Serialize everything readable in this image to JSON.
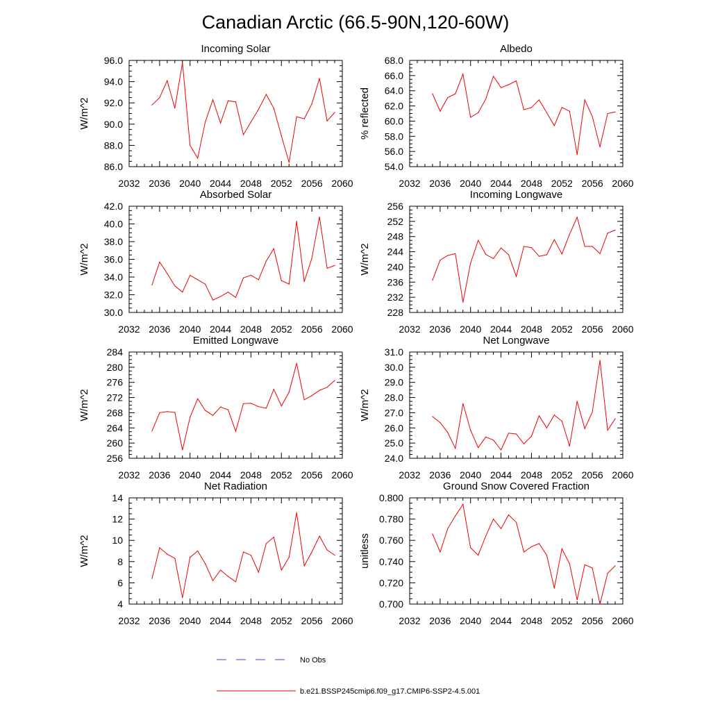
{
  "figure": {
    "title": "Canadian Arctic (66.5-90N,120-60W)",
    "legend": [
      {
        "label": "No Obs",
        "color": "#3344cc",
        "style": "dashed"
      },
      {
        "label": "b.e21.BSSP245cmip6.f09_g17.CMIP6-SSP2-4.5.001",
        "color": "#ee0000",
        "style": "solid"
      }
    ]
  },
  "chart_data": [
    {
      "type": "line",
      "title": "Incoming Solar",
      "ylabel": "W/m^2",
      "xlim": [
        2032,
        2060
      ],
      "xticks": [
        "2032",
        "2036",
        "2040",
        "2044",
        "2048",
        "2052",
        "2056",
        "2060"
      ],
      "ylim": [
        86.0,
        96.0
      ],
      "yticks": [
        "86.0",
        "88.0",
        "90.0",
        "92.0",
        "94.0",
        "96.0"
      ],
      "x": [
        2035,
        2036,
        2037,
        2038,
        2039,
        2040,
        2041,
        2042,
        2043,
        2044,
        2045,
        2046,
        2047,
        2048,
        2049,
        2050,
        2051,
        2052,
        2053,
        2054,
        2055,
        2056,
        2057,
        2058,
        2059
      ],
      "series": [
        {
          "name": "b.e21.BSSP245cmip6.f09_g17.CMIP6-SSP2-4.5.001",
          "color": "#ee0000",
          "values": [
            91.8,
            92.5,
            94.1,
            91.5,
            95.8,
            88.0,
            86.8,
            90.2,
            92.3,
            90.1,
            92.2,
            92.1,
            89.0,
            90.2,
            91.4,
            92.8,
            91.5,
            88.9,
            86.4,
            90.7,
            90.5,
            91.9,
            94.3,
            90.3,
            91.1
          ]
        }
      ]
    },
    {
      "type": "line",
      "title": "Albedo",
      "ylabel": "% reflected",
      "xlim": [
        2032,
        2060
      ],
      "xticks": [
        "2032",
        "2036",
        "2040",
        "2044",
        "2048",
        "2052",
        "2056",
        "2060"
      ],
      "ylim": [
        54.0,
        68.0
      ],
      "yticks": [
        "54.0",
        "56.0",
        "58.0",
        "60.0",
        "62.0",
        "64.0",
        "66.0",
        "68.0"
      ],
      "x": [
        2035,
        2036,
        2037,
        2038,
        2039,
        2040,
        2041,
        2042,
        2043,
        2044,
        2045,
        2046,
        2047,
        2048,
        2049,
        2050,
        2051,
        2052,
        2053,
        2054,
        2055,
        2056,
        2057,
        2058,
        2059
      ],
      "series": [
        {
          "name": "b.e21.BSSP245cmip6.f09_g17.CMIP6-SSP2-4.5.001",
          "color": "#ee0000",
          "values": [
            63.6,
            61.3,
            63.1,
            63.6,
            66.2,
            60.5,
            61.1,
            62.9,
            65.9,
            64.4,
            64.8,
            65.3,
            61.5,
            61.8,
            62.8,
            61.1,
            59.4,
            61.8,
            61.3,
            55.6,
            62.8,
            60.6,
            56.6,
            61.0,
            61.2
          ]
        }
      ]
    },
    {
      "type": "line",
      "title": "Absorbed Solar",
      "ylabel": "W/m^2",
      "xlim": [
        2032,
        2060
      ],
      "xticks": [
        "2032",
        "2036",
        "2040",
        "2044",
        "2048",
        "2052",
        "2056",
        "2060"
      ],
      "ylim": [
        30.0,
        42.0
      ],
      "yticks": [
        "30.0",
        "32.0",
        "34.0",
        "36.0",
        "38.0",
        "40.0",
        "42.0"
      ],
      "x": [
        2035,
        2036,
        2037,
        2038,
        2039,
        2040,
        2041,
        2042,
        2043,
        2044,
        2045,
        2046,
        2047,
        2048,
        2049,
        2050,
        2051,
        2052,
        2053,
        2054,
        2055,
        2056,
        2057,
        2058,
        2059
      ],
      "series": [
        {
          "name": "b.e21.BSSP245cmip6.f09_g17.CMIP6-SSP2-4.5.001",
          "color": "#ee0000",
          "values": [
            33.1,
            35.7,
            34.4,
            33.0,
            32.3,
            34.2,
            33.7,
            33.2,
            31.4,
            31.8,
            32.3,
            31.7,
            33.9,
            34.2,
            33.7,
            35.8,
            37.2,
            33.6,
            33.2,
            40.3,
            33.5,
            36.1,
            40.8,
            35.0,
            35.3
          ]
        }
      ]
    },
    {
      "type": "line",
      "title": "Incoming Longwave",
      "ylabel": "W/m^2",
      "xlim": [
        2032,
        2060
      ],
      "xticks": [
        "2032",
        "2036",
        "2040",
        "2044",
        "2048",
        "2052",
        "2056",
        "2060"
      ],
      "ylim": [
        228,
        256
      ],
      "yticks": [
        "228",
        "232",
        "236",
        "240",
        "244",
        "248",
        "252",
        "256"
      ],
      "x": [
        2035,
        2036,
        2037,
        2038,
        2039,
        2040,
        2041,
        2042,
        2043,
        2044,
        2045,
        2046,
        2047,
        2048,
        2049,
        2050,
        2051,
        2052,
        2053,
        2054,
        2055,
        2056,
        2057,
        2058,
        2059
      ],
      "series": [
        {
          "name": "b.e21.BSSP245cmip6.f09_g17.CMIP6-SSP2-4.5.001",
          "color": "#ee0000",
          "values": [
            236.5,
            241.8,
            243.0,
            243.5,
            230.7,
            241.0,
            247.0,
            243.3,
            242.2,
            245.0,
            243.2,
            237.5,
            245.4,
            245.1,
            242.8,
            243.2,
            247.2,
            243.4,
            248.6,
            253.1,
            245.4,
            245.4,
            243.5,
            248.9,
            249.7
          ]
        }
      ]
    },
    {
      "type": "line",
      "title": "Emitted Longwave",
      "ylabel": "W/m^2",
      "xlim": [
        2032,
        2060
      ],
      "xticks": [
        "2032",
        "2036",
        "2040",
        "2044",
        "2048",
        "2052",
        "2056",
        "2060"
      ],
      "ylim": [
        256,
        284
      ],
      "yticks": [
        "256",
        "260",
        "264",
        "268",
        "272",
        "276",
        "280",
        "284"
      ],
      "x": [
        2035,
        2036,
        2037,
        2038,
        2039,
        2040,
        2041,
        2042,
        2043,
        2044,
        2045,
        2046,
        2047,
        2048,
        2049,
        2050,
        2051,
        2052,
        2053,
        2054,
        2055,
        2056,
        2057,
        2058,
        2059
      ],
      "series": [
        {
          "name": "b.e21.BSSP245cmip6.f09_g17.CMIP6-SSP2-4.5.001",
          "color": "#ee0000",
          "values": [
            263.2,
            268.0,
            268.3,
            268.1,
            258.2,
            266.8,
            271.7,
            268.6,
            267.3,
            269.5,
            268.8,
            263.1,
            270.4,
            270.5,
            269.6,
            269.2,
            274.2,
            269.8,
            273.4,
            281.0,
            271.4,
            272.5,
            273.9,
            274.7,
            276.5
          ]
        }
      ]
    },
    {
      "type": "line",
      "title": "Net Longwave",
      "ylabel": "W/m^2",
      "xlim": [
        2032,
        2060
      ],
      "xticks": [
        "2032",
        "2036",
        "2040",
        "2044",
        "2048",
        "2052",
        "2056",
        "2060"
      ],
      "ylim": [
        24.0,
        31.0
      ],
      "yticks": [
        "24.0",
        "25.0",
        "26.0",
        "27.0",
        "28.0",
        "29.0",
        "30.0",
        "31.0"
      ],
      "x": [
        2035,
        2036,
        2037,
        2038,
        2039,
        2040,
        2041,
        2042,
        2043,
        2044,
        2045,
        2046,
        2047,
        2048,
        2049,
        2050,
        2051,
        2052,
        2053,
        2054,
        2055,
        2056,
        2057,
        2058,
        2059
      ],
      "series": [
        {
          "name": "b.e21.BSSP245cmip6.f09_g17.CMIP6-SSP2-4.5.001",
          "color": "#ee0000",
          "values": [
            26.75,
            26.35,
            25.7,
            24.65,
            27.6,
            25.85,
            24.7,
            25.4,
            25.2,
            24.55,
            25.65,
            25.6,
            24.95,
            25.45,
            26.8,
            26.0,
            26.85,
            26.45,
            24.8,
            27.75,
            25.95,
            27.05,
            30.45,
            25.85,
            26.6
          ]
        }
      ]
    },
    {
      "type": "line",
      "title": "Net Radiation",
      "ylabel": "W/m^2",
      "xlim": [
        2032,
        2060
      ],
      "xticks": [
        "2032",
        "2036",
        "2040",
        "2044",
        "2048",
        "2052",
        "2056",
        "2060"
      ],
      "ylim": [
        4,
        14
      ],
      "yticks": [
        "4",
        "6",
        "8",
        "10",
        "12",
        "14"
      ],
      "x": [
        2035,
        2036,
        2037,
        2038,
        2039,
        2040,
        2041,
        2042,
        2043,
        2044,
        2045,
        2046,
        2047,
        2048,
        2049,
        2050,
        2051,
        2052,
        2053,
        2054,
        2055,
        2056,
        2057,
        2058,
        2059
      ],
      "series": [
        {
          "name": "b.e21.BSSP245cmip6.f09_g17.CMIP6-SSP2-4.5.001",
          "color": "#ee0000",
          "values": [
            6.4,
            9.3,
            8.7,
            8.3,
            4.6,
            8.4,
            9.0,
            7.8,
            6.2,
            7.2,
            6.6,
            6.1,
            8.9,
            8.6,
            7.0,
            9.7,
            10.3,
            7.2,
            8.4,
            12.6,
            7.6,
            8.9,
            10.4,
            9.1,
            8.6
          ]
        }
      ]
    },
    {
      "type": "line",
      "title": "Ground Snow Covered Fraction",
      "ylabel": "unitless",
      "xlim": [
        2032,
        2060
      ],
      "xticks": [
        "2032",
        "2036",
        "2040",
        "2044",
        "2048",
        "2052",
        "2056",
        "2060"
      ],
      "ylim": [
        0.7,
        0.8
      ],
      "yticks": [
        "0.700",
        "0.720",
        "0.740",
        "0.760",
        "0.780",
        "0.800"
      ],
      "x": [
        2035,
        2036,
        2037,
        2038,
        2039,
        2040,
        2041,
        2042,
        2043,
        2044,
        2045,
        2046,
        2047,
        2048,
        2049,
        2050,
        2051,
        2052,
        2053,
        2054,
        2055,
        2056,
        2057,
        2058,
        2059
      ],
      "series": [
        {
          "name": "b.e21.BSSP245cmip6.f09_g17.CMIP6-SSP2-4.5.001",
          "color": "#ee0000",
          "values": [
            0.766,
            0.749,
            0.771,
            0.783,
            0.794,
            0.753,
            0.746,
            0.764,
            0.78,
            0.771,
            0.784,
            0.777,
            0.749,
            0.754,
            0.757,
            0.746,
            0.715,
            0.752,
            0.738,
            0.704,
            0.737,
            0.734,
            0.7,
            0.729,
            0.736
          ]
        }
      ]
    }
  ]
}
